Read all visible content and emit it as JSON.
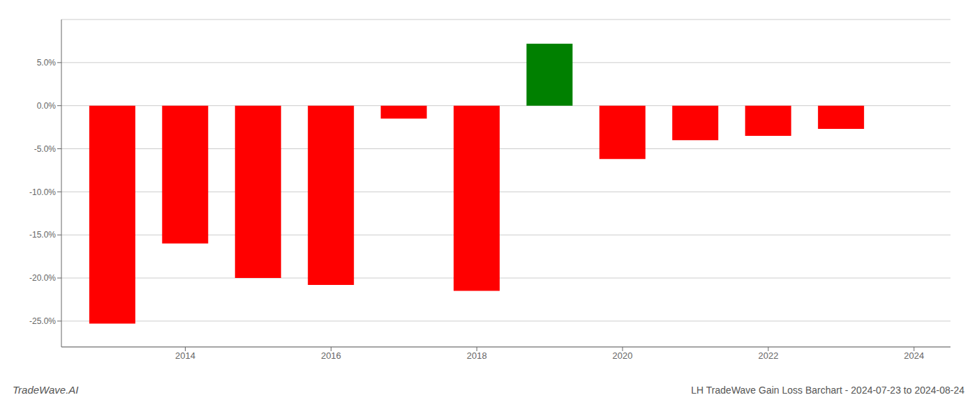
{
  "chart_data": {
    "type": "bar",
    "title": "LH TradeWave Gain Loss Barchart - 2024-07-23 to 2024-08-24",
    "annotations": [
      "TradeWave.AI"
    ],
    "x": [
      2013,
      2014,
      2015,
      2016,
      2017,
      2018,
      2019,
      2020,
      2021,
      2022,
      2023
    ],
    "values": [
      -0.253,
      -0.16,
      -0.2,
      -0.208,
      -0.015,
      -0.215,
      0.072,
      -0.062,
      -0.04,
      -0.035,
      -0.027
    ],
    "colors": [
      "red",
      "red",
      "red",
      "red",
      "red",
      "red",
      "green",
      "red",
      "red",
      "red",
      "red"
    ],
    "xlim": [
      2012.3,
      2024.5
    ],
    "xticks": [
      2014,
      2016,
      2018,
      2020,
      2022,
      2024
    ],
    "ylim": [
      -0.28,
      0.1
    ],
    "yticks": [
      {
        "value": -0.25,
        "label": "-25.0%"
      },
      {
        "value": -0.2,
        "label": "-20.0%"
      },
      {
        "value": -0.15,
        "label": "-15.0%"
      },
      {
        "value": -0.1,
        "label": "-10.0%"
      },
      {
        "value": -0.05,
        "label": "-5.0%"
      },
      {
        "value": 0.0,
        "label": "0.0%"
      },
      {
        "value": 0.05,
        "label": "5.0%"
      }
    ],
    "grid": true
  }
}
